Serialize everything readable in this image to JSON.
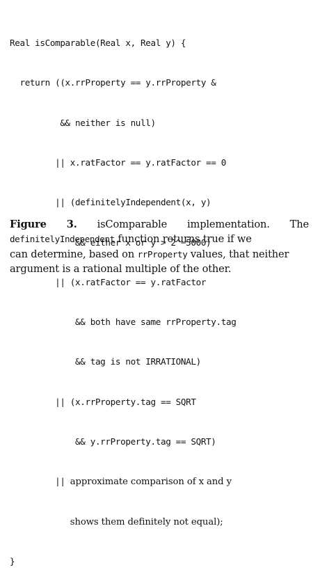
{
  "code": {
    "lines": [
      "Real isComparable(Real x, Real y) {",
      "  return ((x.rrProperty == y.rrProperty &",
      "          && neither is null)",
      "         || x.ratFactor == y.ratFactor == 0",
      "         || (definitelyIndependent(x, y)",
      "             && either x or y > 2^−5000)",
      "         || (x.ratFactor == y.ratFactor",
      "             && both have same rrProperty.tag",
      "             && tag is not IRRATIONAL)",
      "         || (x.rrProperty.tag == SQRT",
      "             && y.rrProperty.tag == SQRT)",
      "         || ",
      "            ",
      "}"
    ],
    "line12_text": "approximate comparison of x and y",
    "line13_text": "shows them definitely not equal);",
    "line12_ops": "         || ",
    "line13_ops": "            "
  },
  "caption": {
    "figure_label": "Figure",
    "figure_number": "3.",
    "title_word_1": "isComparable",
    "title_word_2": "implementation.",
    "title_word_3": "The",
    "function_name": "definitelyIndependent",
    "line2_rest": " function returns true if we",
    "line3": "can determine, based on ",
    "property_name": "rrProperty",
    "line3_rest": " values, that neither",
    "line4": "argument is a rational multiple of the other."
  }
}
